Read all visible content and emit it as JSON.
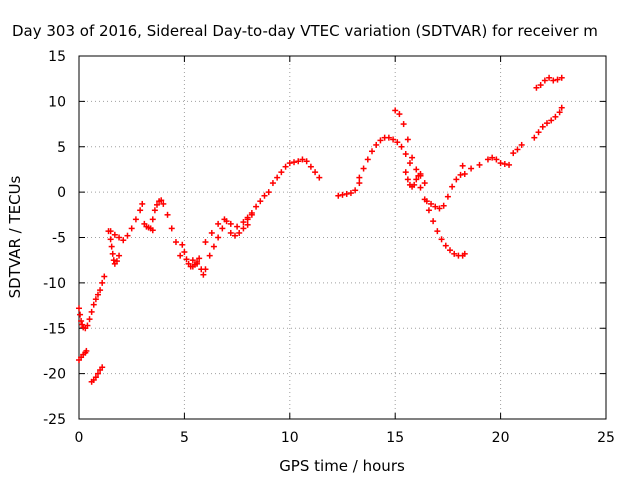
{
  "chart_data": {
    "type": "scatter",
    "title": "Day 303 of 2016, Sidereal Day-to-day VTEC variation (SDTVAR) for receiver m",
    "xlabel": "GPS time / hours",
    "ylabel": "SDTVAR / TECUs",
    "xlim": [
      0,
      25
    ],
    "ylim": [
      -25,
      15
    ],
    "xticks": [
      0,
      5,
      10,
      15,
      20,
      25
    ],
    "yticks": [
      -25,
      -20,
      -15,
      -10,
      -5,
      0,
      5,
      10,
      15
    ],
    "grid": true,
    "marker": "+",
    "color": "#ff0000",
    "series": [
      {
        "segments": [
          {
            "x": [
              0.0,
              0.1,
              0.2,
              0.3,
              0.35
            ],
            "y": [
              -18.5,
              -18.2,
              -17.9,
              -17.7,
              -17.5
            ]
          },
          {
            "x": [
              0.0,
              0.05,
              0.1,
              0.15,
              0.2,
              0.3,
              0.4,
              0.5,
              0.6,
              0.7,
              0.8,
              0.9,
              1.0,
              1.1,
              1.2
            ],
            "y": [
              -12.8,
              -13.5,
              -14.2,
              -14.6,
              -14.9,
              -15.0,
              -14.7,
              -14.0,
              -13.2,
              -12.4,
              -11.8,
              -11.3,
              -10.8,
              -10.0,
              -9.3
            ]
          },
          {
            "x": [
              0.6,
              0.7,
              0.8,
              0.9,
              1.0,
              1.1
            ],
            "y": [
              -20.9,
              -20.7,
              -20.4,
              -20.0,
              -19.6,
              -19.3
            ]
          },
          {
            "x": [
              1.4,
              1.5,
              1.55,
              1.6,
              1.65,
              1.7,
              1.8,
              1.9
            ],
            "y": [
              -4.3,
              -5.2,
              -6.0,
              -6.8,
              -7.5,
              -7.9,
              -7.6,
              -7.0
            ]
          },
          {
            "x": [
              1.5,
              1.7,
              1.9,
              2.1,
              2.3,
              2.5,
              2.7,
              2.9,
              3.0
            ],
            "y": [
              -4.3,
              -4.7,
              -5.0,
              -5.3,
              -4.8,
              -4.0,
              -3.0,
              -2.0,
              -1.3
            ]
          },
          {
            "x": [
              3.1,
              3.2,
              3.3,
              3.4,
              3.5
            ],
            "y": [
              -3.5,
              -3.8,
              -3.9,
              -4.0,
              -4.2
            ]
          },
          {
            "x": [
              3.5,
              3.6,
              3.7,
              3.8,
              3.9,
              4.0,
              4.2,
              4.4,
              4.6,
              4.8
            ],
            "y": [
              -3.0,
              -2.0,
              -1.4,
              -1.0,
              -0.9,
              -1.3,
              -2.5,
              -4.0,
              -5.5,
              -7.0
            ]
          },
          {
            "x": [
              4.9,
              5.0,
              5.1,
              5.2,
              5.3,
              5.4,
              5.5,
              5.6,
              5.7
            ],
            "y": [
              -5.8,
              -6.6,
              -7.4,
              -7.9,
              -8.2,
              -8.2,
              -8.0,
              -7.7,
              -7.3
            ]
          },
          {
            "x": [
              5.4,
              5.6,
              5.8,
              5.9,
              6.0,
              6.2,
              6.4,
              6.6,
              6.8,
              7.0
            ],
            "y": [
              -7.5,
              -7.9,
              -8.5,
              -9.1,
              -8.5,
              -7.0,
              -6.0,
              -5.0,
              -4.0,
              -3.2
            ]
          },
          {
            "x": [
              6.0,
              6.3,
              6.6,
              6.9,
              7.2,
              7.5,
              7.8,
              8.0,
              8.2
            ],
            "y": [
              -5.5,
              -4.5,
              -3.5,
              -3.0,
              -3.5,
              -3.8,
              -3.3,
              -2.8,
              -2.5
            ]
          },
          {
            "x": [
              7.2,
              7.4,
              7.6,
              7.8,
              8.0
            ],
            "y": [
              -4.5,
              -4.8,
              -4.5,
              -4.0,
              -3.6
            ]
          },
          {
            "x": [
              8.0,
              8.2,
              8.4,
              8.6,
              8.8,
              9.0,
              9.2,
              9.4,
              9.6,
              9.8,
              10.0,
              10.2,
              10.4,
              10.6,
              10.8,
              11.0,
              11.2,
              11.4
            ],
            "y": [
              -3.0,
              -2.3,
              -1.6,
              -1.0,
              -0.4,
              0.0,
              1.0,
              1.6,
              2.2,
              2.8,
              3.2,
              3.3,
              3.4,
              3.6,
              3.4,
              2.8,
              2.2,
              1.6
            ]
          },
          {
            "x": [
              12.3,
              12.5,
              12.7,
              12.9,
              13.1,
              13.3
            ],
            "y": [
              -0.4,
              -0.3,
              -0.2,
              -0.1,
              0.2,
              1.0
            ]
          },
          {
            "x": [
              13.3,
              13.5,
              13.7,
              13.9,
              14.1,
              14.3,
              14.5,
              14.7,
              14.9,
              15.1,
              15.3,
              15.5,
              15.7
            ],
            "y": [
              1.6,
              2.6,
              3.6,
              4.5,
              5.2,
              5.7,
              6.0,
              6.0,
              5.8,
              5.5,
              5.0,
              4.2,
              3.2
            ]
          },
          {
            "x": [
              15.0,
              15.2,
              15.4,
              15.6,
              15.8,
              16.0,
              16.2,
              16.4
            ],
            "y": [
              9.0,
              8.6,
              7.5,
              5.8,
              3.8,
              2.5,
              1.8,
              1.0
            ]
          },
          {
            "x": [
              15.5,
              15.6,
              15.7,
              15.8,
              15.9,
              16.0,
              16.1,
              16.2
            ],
            "y": [
              2.2,
              1.4,
              0.8,
              0.6,
              0.8,
              1.4,
              1.8,
              2.0
            ]
          },
          {
            "x": [
              16.2,
              16.4,
              16.6,
              16.8,
              17.0,
              17.2,
              17.4,
              17.6,
              17.8,
              18.0,
              18.2,
              18.3
            ],
            "y": [
              0.5,
              -0.8,
              -2.0,
              -3.2,
              -4.3,
              -5.2,
              -5.9,
              -6.4,
              -6.8,
              -7.0,
              -7.0,
              -6.8
            ]
          },
          {
            "x": [
              16.5,
              16.7,
              16.9,
              17.1,
              17.3,
              17.5,
              17.7,
              17.9,
              18.1,
              18.3
            ],
            "y": [
              -1.0,
              -1.3,
              -1.6,
              -1.8,
              -1.5,
              -0.5,
              0.6,
              1.4,
              1.9,
              2.0
            ]
          },
          {
            "x": [
              18.2,
              18.6,
              19.0,
              19.4,
              19.6,
              19.8,
              20.0,
              20.2,
              20.4
            ],
            "y": [
              2.9,
              2.6,
              3.0,
              3.6,
              3.8,
              3.6,
              3.2,
              3.1,
              3.0
            ]
          },
          {
            "x": [
              20.6,
              20.8,
              21.0
            ],
            "y": [
              4.3,
              4.7,
              5.2
            ]
          },
          {
            "x": [
              21.6,
              21.8,
              22.0,
              22.2,
              22.4,
              22.6,
              22.8,
              22.9
            ],
            "y": [
              6.0,
              6.6,
              7.2,
              7.6,
              7.9,
              8.3,
              8.8,
              9.3
            ]
          },
          {
            "x": [
              21.7,
              21.9,
              22.1,
              22.3,
              22.5,
              22.7,
              22.9
            ],
            "y": [
              11.5,
              11.8,
              12.3,
              12.6,
              12.3,
              12.4,
              12.6
            ]
          }
        ]
      }
    ]
  }
}
